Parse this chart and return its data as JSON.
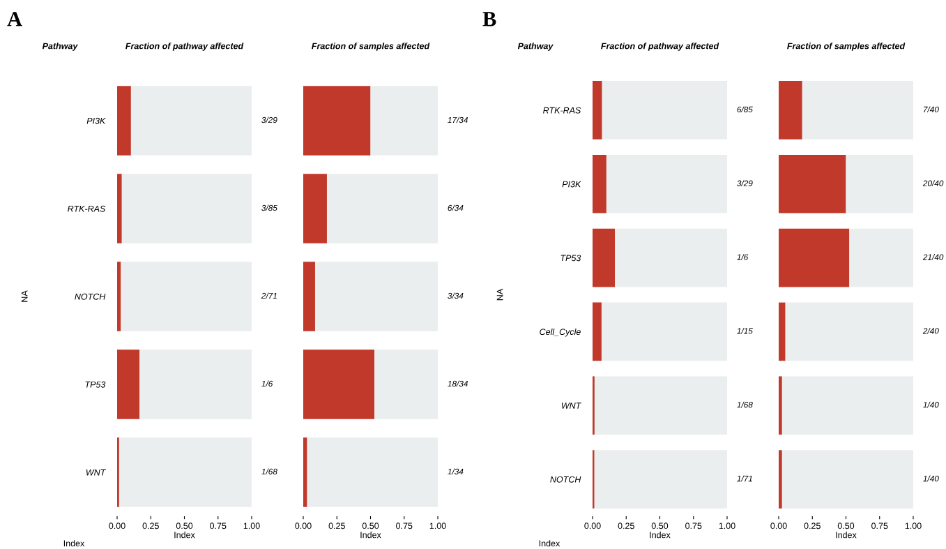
{
  "chart_data": [
    {
      "type": "bar",
      "orientation": "horizontal",
      "stacked": true,
      "title": "Fraction of pathway affected",
      "xlabel": "Index",
      "ylabel": "NA",
      "categories": [
        "PI3K",
        "RTK-RAS",
        "NOTCH",
        "TP53",
        "WNT"
      ],
      "series": [
        {
          "color": "#c0392b",
          "values": [
            0.103,
            0.035,
            0.028,
            0.167,
            0.015
          ]
        },
        {
          "color": "#ebeeee",
          "values": [
            0.897,
            0.965,
            0.972,
            0.833,
            0.985
          ]
        }
      ],
      "xlim": [
        0,
        1
      ],
      "xticks": [
        {
          "value": 0,
          "label": "0.00"
        },
        {
          "value": 0.25,
          "label": "0.25"
        },
        {
          "value": 0.5,
          "label": "0.50"
        },
        {
          "value": 0.75,
          "label": "0.75"
        },
        {
          "value": 1,
          "label": "1.00"
        }
      ],
      "grid": false,
      "legend": false,
      "annotations": [
        "A",
        "Pathway",
        "Index",
        "3/29",
        "3/85",
        "2/71",
        "1/6",
        "1/68"
      ]
    },
    {
      "type": "bar",
      "orientation": "horizontal",
      "stacked": true,
      "title": "Fraction of samples affected",
      "xlabel": "Index",
      "categories": [
        null,
        null,
        null,
        null,
        null
      ],
      "tick_labels": "x",
      "series": [
        {
          "color": "#c0392b",
          "values": [
            0.5,
            0.176,
            0.088,
            0.529,
            0.029
          ]
        },
        {
          "color": "#ebeeee",
          "values": [
            0.5,
            0.824,
            0.912,
            0.471,
            0.971
          ]
        }
      ],
      "xlim": [
        0,
        1
      ],
      "xticks": [
        {
          "value": 0,
          "label": "0.00"
        },
        {
          "value": 0.25,
          "label": "0.25"
        },
        {
          "value": 0.5,
          "label": "0.50"
        },
        {
          "value": 0.75,
          "label": "0.75"
        },
        {
          "value": 1,
          "label": "1.00"
        }
      ],
      "grid": false,
      "legend": false,
      "annotations": [
        "17/34",
        "6/34",
        "3/34",
        "18/34",
        "1/34"
      ]
    },
    {
      "type": "bar",
      "orientation": "horizontal",
      "stacked": true,
      "title": "Fraction of pathway affected",
      "xlabel": "Index",
      "ylabel": "NA",
      "categories": [
        "RTK-RAS",
        "PI3K",
        "TP53",
        "Cell_Cycle",
        "WNT",
        "NOTCH"
      ],
      "series": [
        {
          "color": "#c0392b",
          "values": [
            0.071,
            0.103,
            0.167,
            0.067,
            0.015,
            0.014
          ]
        },
        {
          "color": "#ebeeee",
          "values": [
            0.929,
            0.897,
            0.833,
            0.933,
            0.985,
            0.986
          ]
        }
      ],
      "xlim": [
        0,
        1
      ],
      "xticks": [
        {
          "value": 0,
          "label": "0.00"
        },
        {
          "value": 0.25,
          "label": "0.25"
        },
        {
          "value": 0.5,
          "label": "0.50"
        },
        {
          "value": 0.75,
          "label": "0.75"
        },
        {
          "value": 1,
          "label": "1.00"
        }
      ],
      "grid": false,
      "legend": false,
      "annotations": [
        "B",
        "Pathway",
        "Index",
        "6/85",
        "3/29",
        "1/6",
        "1/15",
        "1/68",
        "1/71"
      ]
    },
    {
      "type": "bar",
      "orientation": "horizontal",
      "stacked": true,
      "title": "Fraction of samples affected",
      "xlabel": "Index",
      "categories": [
        null,
        null,
        null,
        null,
        null,
        null
      ],
      "tick_labels": "x",
      "series": [
        {
          "color": "#c0392b",
          "values": [
            0.175,
            0.5,
            0.525,
            0.05,
            0.025,
            0.025
          ]
        },
        {
          "color": "#ebeeee",
          "values": [
            0.825,
            0.5,
            0.475,
            0.95,
            0.975,
            0.975
          ]
        }
      ],
      "xlim": [
        0,
        1
      ],
      "xticks": [
        {
          "value": 0,
          "label": "0.00"
        },
        {
          "value": 0.25,
          "label": "0.25"
        },
        {
          "value": 0.5,
          "label": "0.50"
        },
        {
          "value": 0.75,
          "label": "0.75"
        },
        {
          "value": 1,
          "label": "1.00"
        }
      ],
      "grid": false,
      "legend": false,
      "annotations": [
        "7/40",
        "20/40",
        "21/40",
        "2/40",
        "1/40",
        "1/40"
      ]
    }
  ]
}
